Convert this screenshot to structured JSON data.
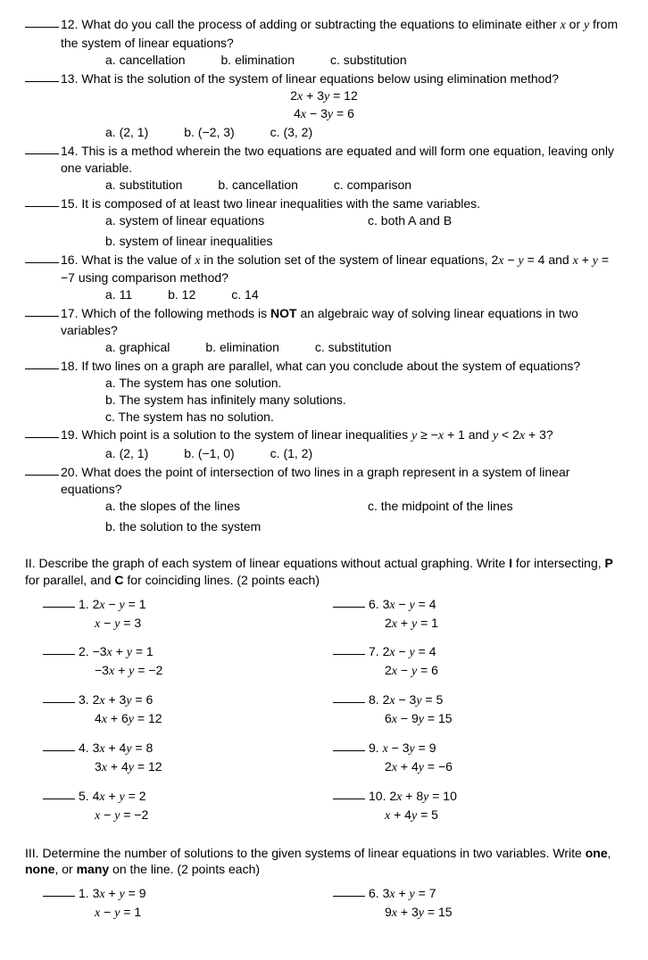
{
  "colors": {
    "text": "#000000",
    "background": "#ffffff",
    "blank_line": "#000000"
  },
  "typography": {
    "body_fontsize_pt": 11,
    "font_family": "Arial",
    "math_font": "Times New Roman italic"
  },
  "partI": {
    "questions": [
      {
        "num": "12.",
        "text": "What do you call the process of adding or subtracting the equations to eliminate either <it>x</it> or <it>y</it> from the system of linear equations?",
        "opts": [
          "a. cancellation",
          "b. elimination",
          "c. substitution"
        ],
        "opt_layout": "row3"
      },
      {
        "num": "13.",
        "text": "What is the solution of the system of linear equations below using elimination method?",
        "center_lines": [
          "2<it>x</it> + 3<it>y</it> = 12",
          "4<it>x</it> − 3<it>y</it> = 6"
        ],
        "opts": [
          "a. (2, 1)",
          "b. (−2, 3)",
          "c. (3, 2)"
        ],
        "opt_layout": "row3"
      },
      {
        "num": "14.",
        "text": "This is a method wherein the two equations are equated and will form one equation, leaving only one variable.",
        "opts": [
          "a. substitution",
          "b. cancellation",
          "c. comparison"
        ],
        "opt_layout": "row3"
      },
      {
        "num": "15.",
        "text": "It is composed of at least two linear inequalities with the same variables.",
        "opts": [
          "a. system of linear equations",
          "c. both A and B",
          "b. system of linear inequalities",
          ""
        ],
        "opt_layout": "grid2x2"
      },
      {
        "num": "16.",
        "text": "What is the value of <it>x</it> in the solution set of the system of linear equations, 2<it>x</it> − <it>y</it> = 4 and <it>x</it> + <it>y</it> = −7 using comparison method?",
        "opts": [
          "a. 11",
          "b. 12",
          "c. 14"
        ],
        "opt_layout": "row3"
      },
      {
        "num": "17.",
        "text": "Which of the following methods is <b>NOT</b> an algebraic way of solving linear equations in two variables?",
        "opts": [
          "a. graphical",
          "b. elimination",
          "c. substitution"
        ],
        "opt_layout": "row3"
      },
      {
        "num": "18.",
        "text": "If two lines on a graph are parallel, what can you conclude about the system of equations?",
        "opts": [
          "a.  The system has one solution.",
          "b.  The system has infinitely many solutions.",
          "c.  The system has no solution."
        ],
        "opt_layout": "stack"
      },
      {
        "num": "19.",
        "text": "Which point is a solution to the system of linear inequalities <it>y</it> ≥ −<it>x</it> + 1 and <it>y</it> < 2<it>x</it> + 3?",
        "opts": [
          "a.  (2, 1)",
          "b.  (−1, 0)",
          "c.  (1, 2)"
        ],
        "opt_layout": "row3"
      },
      {
        "num": "20.",
        "text": "What does the point of intersection of two lines in a graph represent in a system of linear equations?",
        "opts": [
          "a.  the slopes of the lines",
          "c. the midpoint of the lines",
          "b.  the solution to the system",
          ""
        ],
        "opt_layout": "grid2x2"
      }
    ]
  },
  "partII": {
    "heading": "II. Describe the graph of each system of linear equations without actual graphing. Write <b>I</b> for intersecting, <b>P</b> for parallel, and <b>C</b> for coinciding lines. (2 points each)",
    "items": [
      {
        "num": "1.",
        "eq1": "2<it>x</it> − <it>y</it> = 1",
        "eq2": "<it>x</it> − <it>y</it> = 3"
      },
      {
        "num": "6.",
        "eq1": "3<it>x</it> − <it>y</it> = 4",
        "eq2": "2<it>x</it> + <it>y</it> = 1"
      },
      {
        "num": "2.",
        "eq1": "−3<it>x</it> + <it>y</it> = 1",
        "eq2": "−3<it>x</it> + <it>y</it> = −2"
      },
      {
        "num": "7.",
        "eq1": "2<it>x</it> − <it>y</it> = 4",
        "eq2": "2<it>x</it> − <it>y</it> = 6"
      },
      {
        "num": "3.",
        "eq1": "2<it>x</it> + 3<it>y</it> = 6",
        "eq2": "4<it>x</it> + 6<it>y</it> = 12"
      },
      {
        "num": "8.",
        "eq1": "2<it>x</it> − 3<it>y</it> = 5",
        "eq2": "6<it>x</it> − 9<it>y</it> = 15"
      },
      {
        "num": "4.",
        "eq1": "3<it>x</it> + 4<it>y</it> = 8",
        "eq2": "3<it>x</it> + 4<it>y</it> = 12"
      },
      {
        "num": "9.",
        "eq1": "<it>x</it> − 3<it>y</it> = 9",
        "eq2": "2<it>x</it> + 4<it>y</it> = −6"
      },
      {
        "num": "5.",
        "eq1": "4<it>x</it> + <it>y</it> = 2",
        "eq2": "<it>x</it> − <it>y</it> = −2"
      },
      {
        "num": "10.",
        "eq1": "2<it>x</it> + 8<it>y</it> = 10",
        "eq2": "<it>x</it> + 4<it>y</it> = 5"
      }
    ]
  },
  "partIII": {
    "heading": "III. Determine the number of solutions to the given systems of linear equations in two variables. Write <b>one</b>, <b>none</b>, or <b>many</b> on the line. (2 points each)",
    "items": [
      {
        "num": "1.",
        "eq1": "3<it>x</it> + <it>y</it> = 9",
        "eq2": "<it>x</it> − <it>y</it> = 1"
      },
      {
        "num": "6.",
        "eq1": "3<it>x</it> + <it>y</it> = 7",
        "eq2": "9<it>x</it> + 3<it>y</it> = 15"
      }
    ]
  }
}
